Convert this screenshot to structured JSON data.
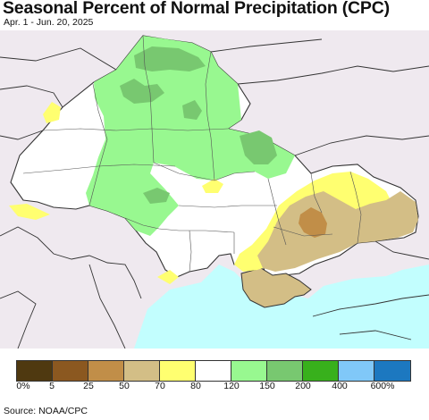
{
  "header": {
    "title": "Seasonal Percent of Normal Precipitation (CPC)",
    "date_range": "Apr. 1 - Jun. 20, 2025"
  },
  "legend": {
    "bins": [
      {
        "label": "0%",
        "color": "#4f3910"
      },
      {
        "label": "5",
        "color": "#8b5820"
      },
      {
        "label": "25",
        "color": "#c18e48"
      },
      {
        "label": "50",
        "color": "#d3be86"
      },
      {
        "label": "70",
        "color": "#ffff70"
      },
      {
        "label": "80",
        "color": "#ffffff"
      },
      {
        "label": "120",
        "color": "#98f890"
      },
      {
        "label": "150",
        "color": "#78c870"
      },
      {
        "label": "200",
        "color": "#38b01c"
      },
      {
        "label": "400",
        "color": "#80c8f8"
      },
      {
        "label": "600%",
        "color": "#1c78c0"
      }
    ]
  },
  "footer": {
    "source": "Source: NOAA/CPC"
  },
  "colors": {
    "outside_region": "#efe9ef",
    "sea": "#c2fefe",
    "border": "#333333"
  }
}
